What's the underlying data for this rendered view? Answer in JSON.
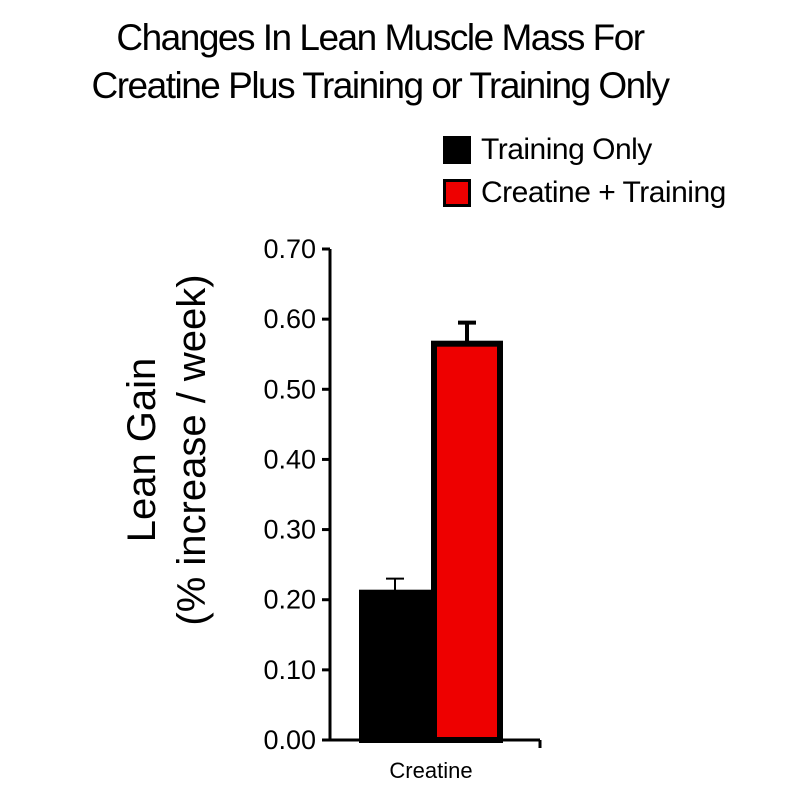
{
  "chart_data": {
    "type": "bar",
    "title_lines": [
      "Changes In Lean Muscle Mass For",
      "Creatine Plus Training or Training Only"
    ],
    "ylabel_lines": [
      "Lean Gain",
      "(% increase / week)"
    ],
    "xlabel": "",
    "categories": [
      "Creatine"
    ],
    "series": [
      {
        "name": "Training Only",
        "color": "#000000",
        "values": [
          0.21
        ],
        "error": [
          0.02
        ]
      },
      {
        "name": "Creatine + Training",
        "color": "#ee0000",
        "values": [
          0.565
        ],
        "error": [
          0.03
        ]
      }
    ],
    "ylim": [
      0,
      0.7
    ],
    "yticks": [
      "0.00",
      "0.10",
      "0.20",
      "0.30",
      "0.40",
      "0.50",
      "0.60",
      "0.70"
    ],
    "grid": false,
    "legend_position": "top-right",
    "error_bars": "upper"
  }
}
